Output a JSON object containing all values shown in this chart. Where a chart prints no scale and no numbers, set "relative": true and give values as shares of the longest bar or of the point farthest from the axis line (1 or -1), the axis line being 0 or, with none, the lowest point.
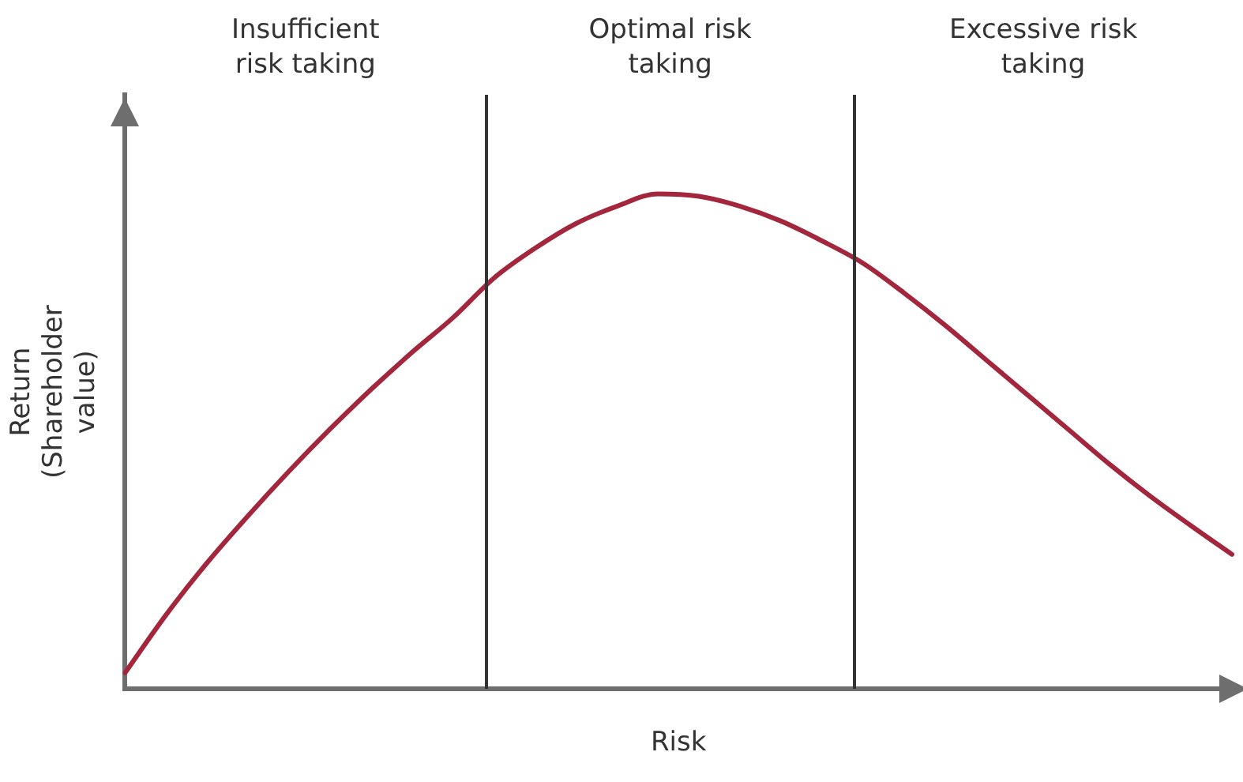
{
  "chart_data": {
    "type": "line",
    "relative": true,
    "xlabel": "Risk",
    "ylabel": "Return (Shareholder value)",
    "categories": [
      null,
      null,
      null,
      null,
      null,
      null,
      null,
      null,
      null,
      null,
      null,
      null,
      null,
      null,
      null,
      null,
      null,
      null,
      null,
      null,
      null,
      null,
      null,
      null,
      null,
      null,
      null,
      null
    ],
    "series": [
      {
        "color": "#a3263c",
        "values": [
          0.033,
          0.15,
          0.255,
          0.35,
          0.44,
          0.525,
          0.605,
          0.68,
          0.75,
          0.83,
          0.89,
          0.94,
          0.975,
          1,
          0.995,
          0.975,
          0.945,
          0.905,
          0.86,
          0.8,
          0.735,
          0.665,
          0.595,
          0.525,
          0.455,
          0.39,
          0.33,
          0.272
        ]
      }
    ],
    "annotations": [
      "Insufficient risk taking",
      "Optimal risk taking",
      "Excessive risk taking"
    ],
    "grid": false,
    "legend": false,
    "marker": "none",
    "line_style": "solid"
  }
}
